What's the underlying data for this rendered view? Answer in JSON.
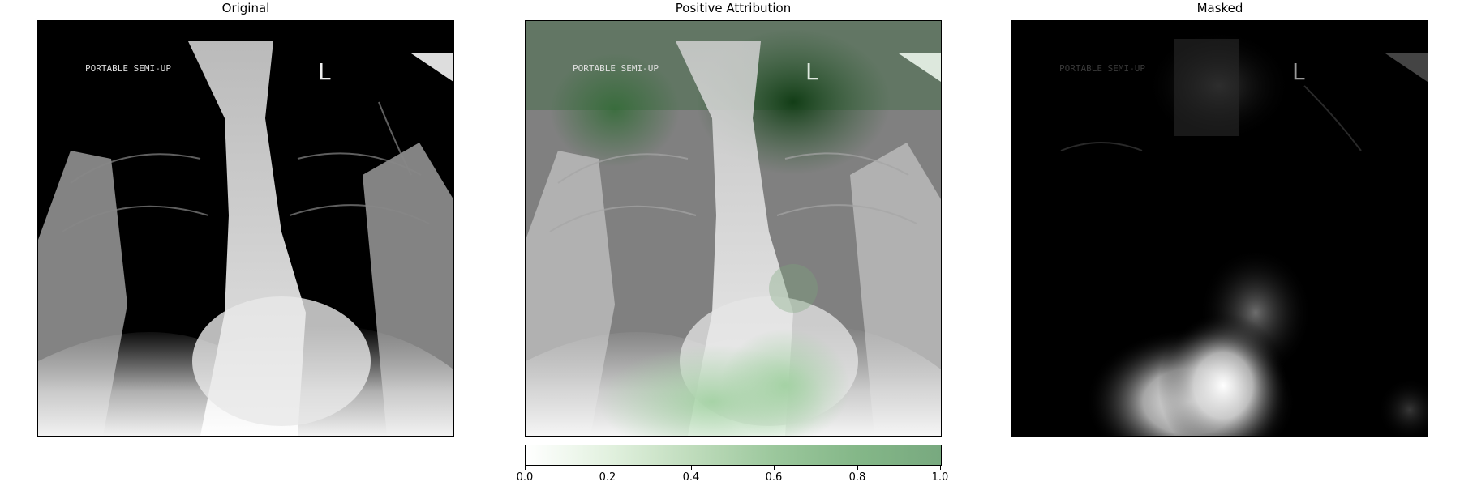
{
  "panels": {
    "original": {
      "title": "Original"
    },
    "attribution": {
      "title": "Positive Attribution"
    },
    "masked": {
      "title": "Masked"
    }
  },
  "colorbar": {
    "ticks": [
      "0.0",
      "0.2",
      "0.4",
      "0.6",
      "0.8",
      "1.0"
    ],
    "colors": [
      "#ffffff",
      "#78a97f"
    ]
  },
  "image_text": {
    "marker": "L",
    "label": "PORTABLE SEMI-UP"
  }
}
